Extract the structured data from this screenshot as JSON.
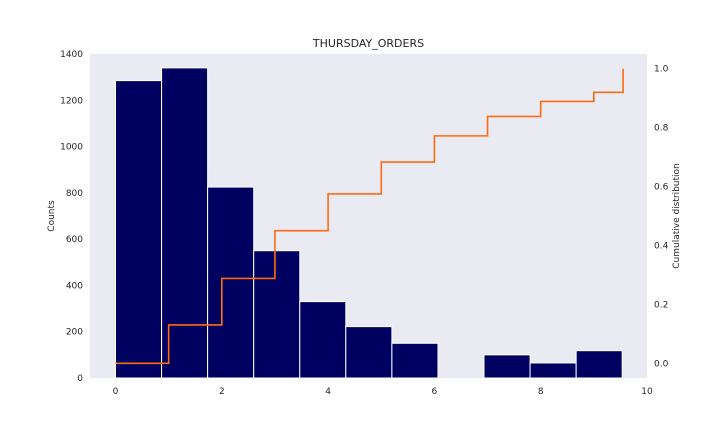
{
  "chart_data": {
    "type": "bar",
    "title": "THURSDAY_ORDERS",
    "ylabel": "Counts",
    "y2label": "Cumulative distribution",
    "xlim": [
      -0.48,
      10.0
    ],
    "ylim": [
      0,
      1400
    ],
    "y2lim": [
      -0.05,
      1.05
    ],
    "x_ticks": [
      0,
      2,
      4,
      6,
      8,
      10
    ],
    "y_ticks": [
      0,
      200,
      400,
      600,
      800,
      1000,
      1200,
      1400
    ],
    "y2_ticks": [
      0.0,
      0.2,
      0.4,
      0.6,
      0.8,
      1.0
    ],
    "y2_tick_labels": [
      "0.0",
      "0.2",
      "0.4",
      "0.6",
      "0.8",
      "1.0"
    ],
    "grid": false,
    "bar_color": "#000060",
    "line_color": "#ff6a13",
    "plot_background": "#eaeaf2",
    "histogram": {
      "bin_edges": [
        0,
        0.867,
        1.733,
        2.6,
        3.467,
        4.333,
        5.2,
        6.067,
        6.933,
        7.8,
        8.667,
        9.533
      ],
      "counts": [
        1285,
        1340,
        825,
        550,
        330,
        222,
        150,
        0,
        100,
        65,
        118
      ]
    },
    "cumulative": {
      "x": [
        0,
        1,
        2,
        3,
        4,
        5,
        6,
        7,
        8,
        9,
        9.55
      ],
      "y": [
        0.0,
        0.13,
        0.288,
        0.45,
        0.575,
        0.683,
        0.772,
        0.838,
        0.889,
        0.92,
        1.0
      ]
    }
  }
}
